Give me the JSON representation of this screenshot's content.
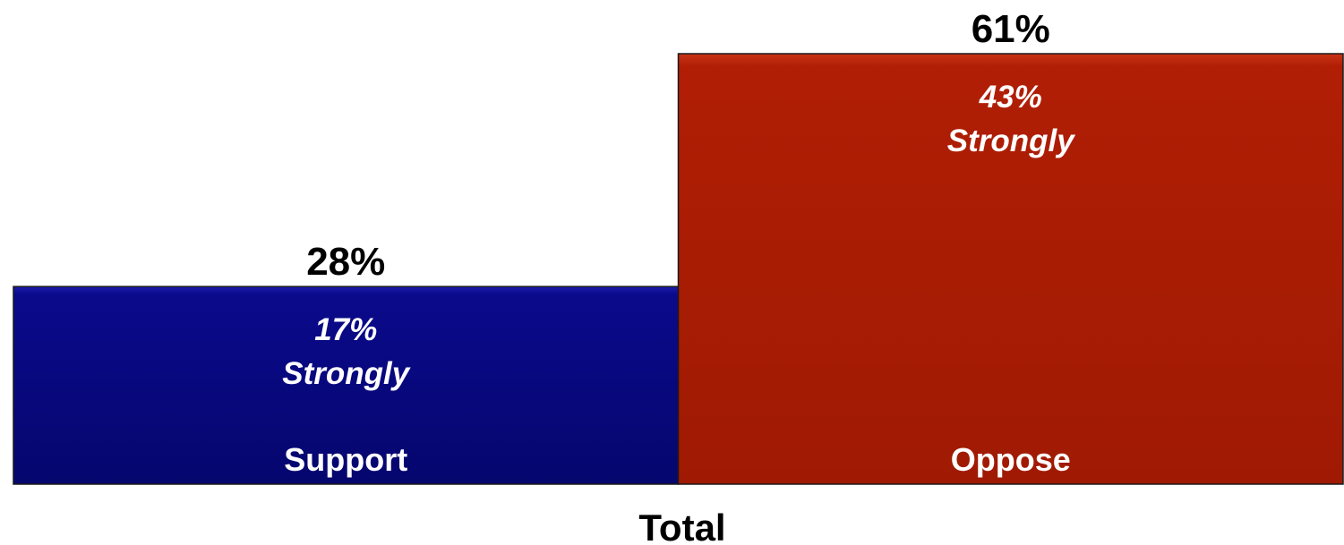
{
  "chart_data": {
    "type": "bar",
    "categories": [
      "Support",
      "Oppose"
    ],
    "values": [
      28,
      61
    ],
    "value_labels": [
      "28%",
      "61%"
    ],
    "strongly_values": [
      17,
      43
    ],
    "strongly_labels": [
      {
        "pct": "17%",
        "text": "Strongly"
      },
      {
        "pct": "43%",
        "text": "Strongly"
      }
    ],
    "colors": [
      "#0a0a8c",
      "#b01e05"
    ],
    "xlabel": "Total",
    "ylim": [
      0,
      61
    ],
    "grid": false,
    "legend": "none"
  }
}
